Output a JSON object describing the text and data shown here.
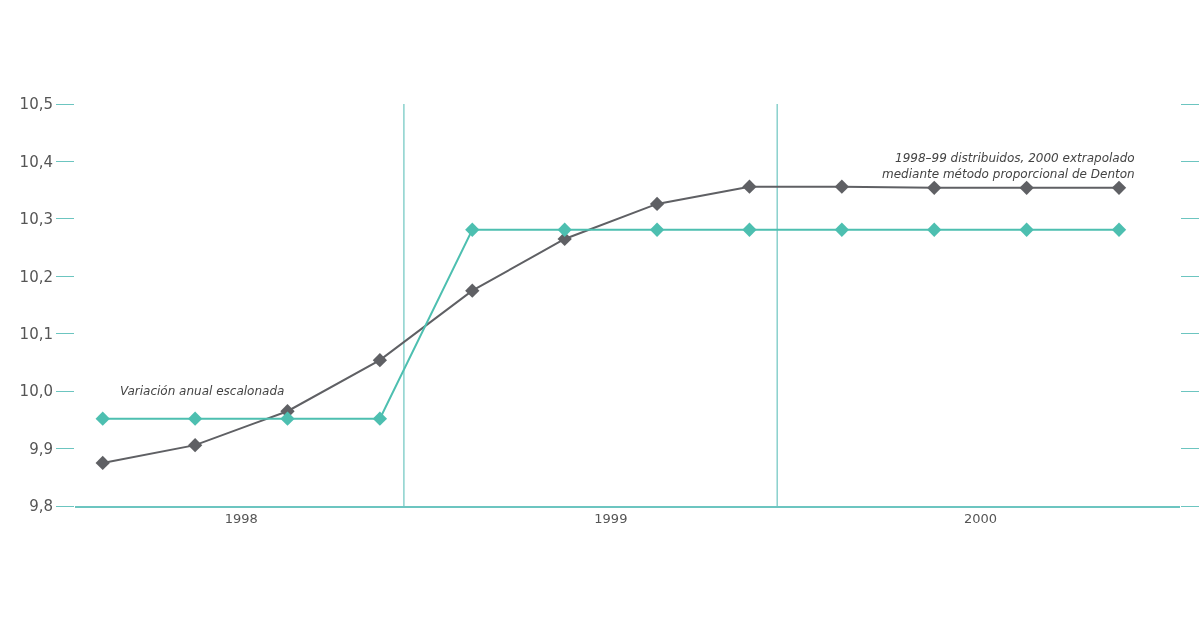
{
  "chart_data": {
    "type": "line",
    "x": [
      1998.125,
      1998.375,
      1998.625,
      1998.875,
      1999.125,
      1999.375,
      1999.625,
      1999.875,
      2000.125,
      2000.375,
      2000.625,
      2000.875
    ],
    "series": [
      {
        "color": "#5f6064",
        "values": [
          9.875,
          9.906,
          9.965,
          10.054,
          10.175,
          10.265,
          10.326,
          10.356,
          10.356,
          10.354,
          10.354,
          10.354
        ]
      },
      {
        "color": "#4dbfb0",
        "values": [
          9.952,
          9.952,
          9.952,
          9.952,
          10.281,
          10.281,
          10.281,
          10.281,
          10.281,
          10.281,
          10.281,
          10.281
        ]
      }
    ],
    "xlim": [
      1998.05,
      2001.04
    ],
    "xticks": [
      {
        "value": 1998.5,
        "label": "1998"
      },
      {
        "value": 1999.5,
        "label": "1999"
      },
      {
        "value": 2000.5,
        "label": "2000"
      }
    ],
    "ylim": [
      9.8,
      10.5
    ],
    "yticks": [
      {
        "value": 9.8,
        "label": "9,8"
      },
      {
        "value": 9.9,
        "label": "9,9"
      },
      {
        "value": 10.0,
        "label": "10,0"
      },
      {
        "value": 10.1,
        "label": "10,1"
      },
      {
        "value": 10.2,
        "label": "10,2"
      },
      {
        "value": 10.3,
        "label": "10,3"
      },
      {
        "value": 10.4,
        "label": "10,4"
      },
      {
        "value": 10.5,
        "label": "10,5"
      }
    ],
    "ref_lines": [
      {
        "axis": "x",
        "value": 1998.94,
        "color": "#6cc5c0"
      },
      {
        "axis": "x",
        "value": 1999.95,
        "color": "#6cc5c0"
      }
    ],
    "annotations": [
      "Variación anual escalonada",
      "1998–99 distribuidos, 2000 extrapolado\nmediante método proporcional de Denton"
    ],
    "marker": "diamond",
    "line_style": "solid",
    "grid": false
  }
}
